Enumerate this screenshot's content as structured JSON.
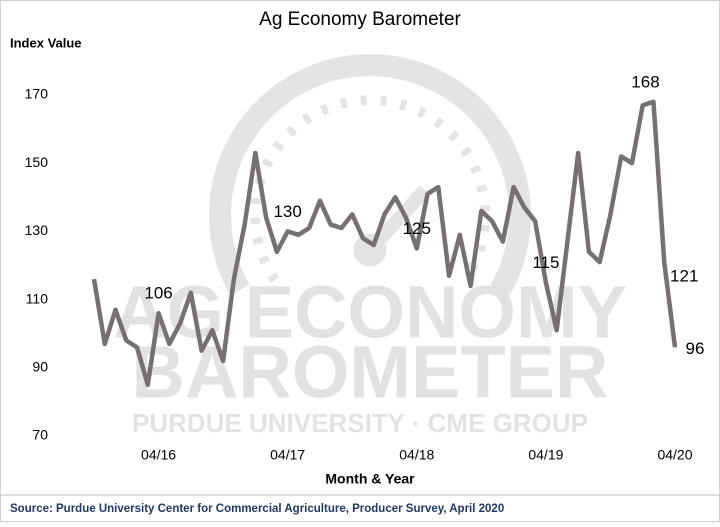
{
  "chart_data": {
    "type": "line",
    "title": "Ag Economy Barometer",
    "y_label": "Index Value",
    "x_label": "Month & Year",
    "source": "Source: Purdue University Center for Commercial Agriculture, Producer Survey, April 2020",
    "watermark": [
      "AG ECONOMY",
      "BAROMETER",
      "PURDUE UNIVERSITY  ·  CME GROUP"
    ],
    "categories": [
      null,
      null,
      null,
      null,
      null,
      null,
      "04/16",
      null,
      null,
      null,
      null,
      null,
      null,
      null,
      null,
      null,
      null,
      null,
      "04/17",
      null,
      null,
      null,
      null,
      null,
      null,
      null,
      null,
      null,
      null,
      null,
      "04/18",
      null,
      null,
      null,
      null,
      null,
      null,
      null,
      null,
      null,
      null,
      null,
      "04/19",
      null,
      null,
      null,
      null,
      null,
      null,
      null,
      null,
      null,
      null,
      null,
      "04/20"
    ],
    "series": [
      {
        "name": "Ag Economy Barometer",
        "color": "#767171",
        "values": [
          116,
          97,
          107,
          98,
          96,
          85,
          106,
          97,
          103,
          112,
          95,
          101,
          92,
          116,
          132,
          153,
          134,
          124,
          130,
          129,
          131,
          139,
          132,
          131,
          135,
          128,
          126,
          135,
          140,
          134,
          125,
          141,
          143,
          117,
          129,
          114,
          136,
          133,
          127,
          143,
          137,
          133,
          115,
          101,
          127,
          153,
          124,
          121,
          135,
          152,
          150,
          167,
          168,
          121,
          96
        ]
      }
    ],
    "labeled_points": [
      6,
      18,
      30,
      42,
      52,
      53,
      54
    ],
    "ylim": [
      70,
      170
    ],
    "yticks": [
      70,
      90,
      110,
      130,
      150,
      170
    ],
    "grid": false
  }
}
